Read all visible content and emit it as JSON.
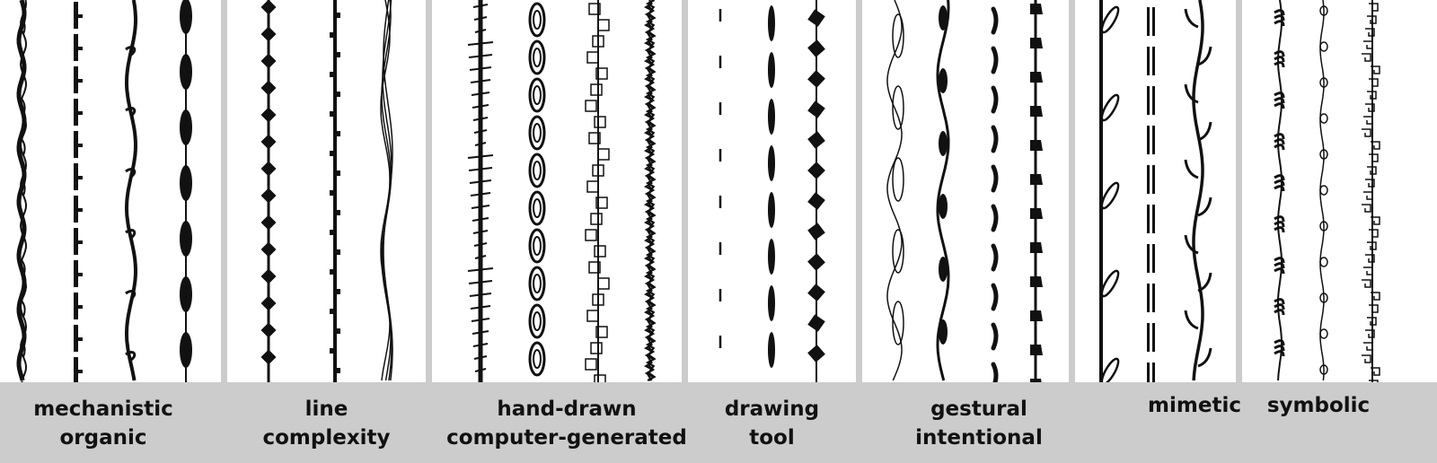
{
  "colors": {
    "band": "#cccccc",
    "panel": "#ffffff",
    "ink": "#111111"
  },
  "panels": [
    {
      "id": "mechanistic-organic",
      "caption": [
        "mechanistic",
        "organic"
      ],
      "strokes": [
        "wavy-leafy-line",
        "dashed-notched-line",
        "vine-with-knots",
        "beaded-blob-line"
      ]
    },
    {
      "id": "line-complexity",
      "caption": [
        "line",
        "complexity"
      ],
      "strokes": [
        "diamond-bead-line",
        "square-notch-line",
        "scribbled-wavy-line"
      ]
    },
    {
      "id": "hand-drawn-computer-generated",
      "caption": [
        "hand-drawn",
        "computer-generated"
      ],
      "strokes": [
        "hatched-tick-line",
        "spiral-loop-line",
        "square-tangle-line",
        "scribble-coil-line"
      ]
    },
    {
      "id": "drawing-tool",
      "caption": [
        "drawing",
        "tool"
      ],
      "strokes": [
        "thin-dash-line",
        "ellipse-dash-line",
        "diamond-ribbon-line"
      ]
    },
    {
      "id": "gestural-intentional",
      "caption": [
        "gestural",
        "intentional"
      ],
      "strokes": [
        "loopy-gesture-line",
        "blobby-gesture-line",
        "comma-dash-line",
        "flag-tick-line"
      ]
    },
    {
      "id": "mimetic",
      "caption": [
        "mimetic"
      ],
      "strokes": [
        "leaf-branch-line",
        "double-dash-line",
        "thorn-vine-line"
      ]
    },
    {
      "id": "symbolic",
      "caption": [
        "symbolic"
      ],
      "strokes": [
        "curl-cluster-line",
        "small-loop-line",
        "key-pattern-line"
      ]
    }
  ]
}
